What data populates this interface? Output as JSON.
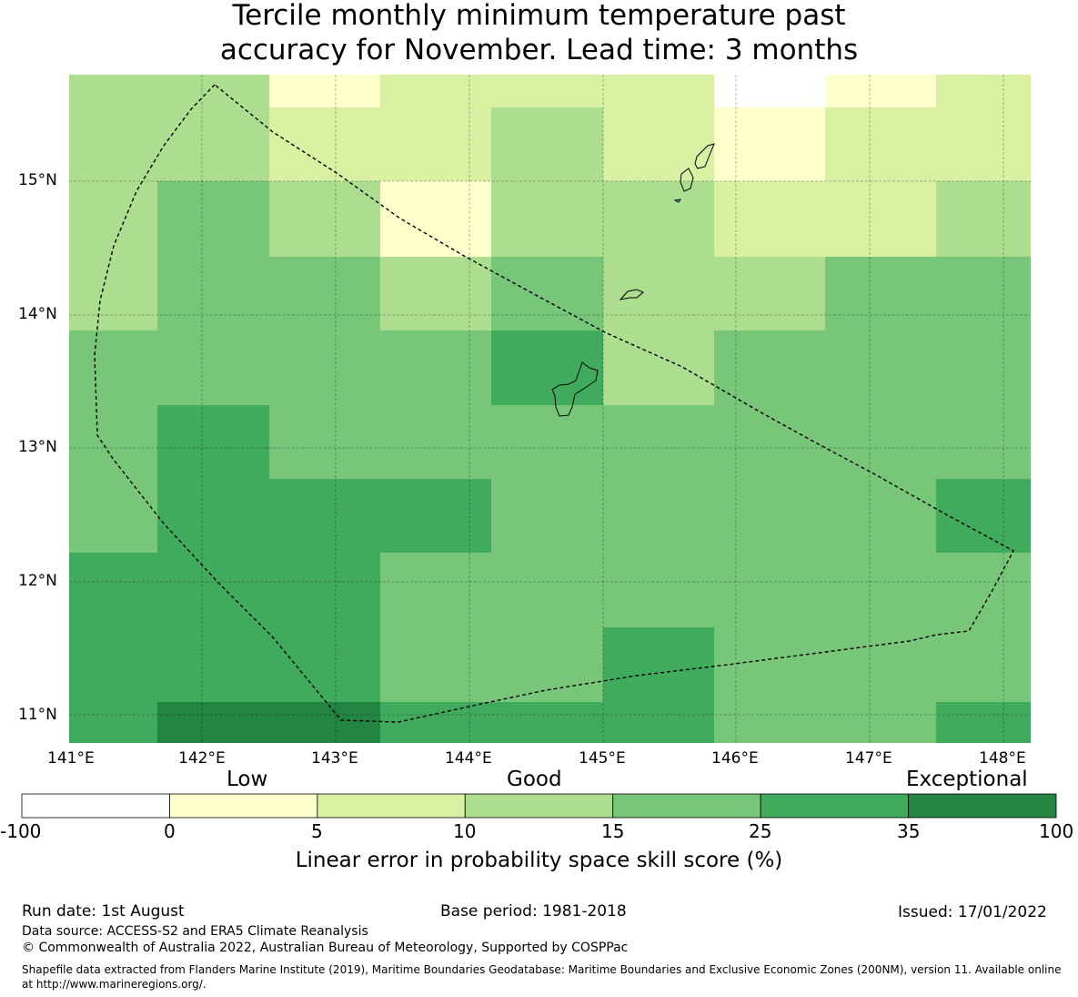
{
  "title_line1": "Tercile monthly minimum temperature past",
  "title_line2": "accuracy for November. Lead time: 3 months",
  "map": {
    "lon_labels": [
      "141°E",
      "142°E",
      "143°E",
      "144°E",
      "145°E",
      "146°E",
      "147°E",
      "148°E"
    ],
    "lat_labels": [
      "15°N",
      "14°N",
      "13°N",
      "12°N",
      "11°N"
    ],
    "grid_cells_note_categories": [
      "below 0",
      "0-5",
      "5-10",
      "10-15",
      "15-25",
      "25-35",
      "35-100"
    ],
    "grid": [
      [
        3,
        3,
        1,
        2,
        2,
        2,
        0,
        1,
        2
      ],
      [
        3,
        3,
        2,
        2,
        3,
        2,
        1,
        2,
        2
      ],
      [
        3,
        4,
        3,
        1,
        3,
        3,
        2,
        2,
        3
      ],
      [
        3,
        4,
        4,
        3,
        4,
        3,
        3,
        4,
        4
      ],
      [
        4,
        4,
        4,
        4,
        5,
        3,
        4,
        4,
        4
      ],
      [
        4,
        5,
        4,
        4,
        4,
        4,
        4,
        4,
        4
      ],
      [
        4,
        5,
        5,
        5,
        4,
        4,
        4,
        4,
        5
      ],
      [
        5,
        5,
        5,
        4,
        4,
        4,
        4,
        4,
        4
      ],
      [
        5,
        5,
        5,
        4,
        4,
        5,
        4,
        4,
        4
      ],
      [
        5,
        6,
        6,
        5,
        5,
        5,
        4,
        4,
        5
      ]
    ],
    "colors": {
      "below_0": "#ffffff",
      "0_5": "#ffffcc",
      "5_10": "#d9f0a3",
      "10_15": "#addd8e",
      "15_25": "#78c679",
      "25_35": "#41ab5d",
      "35_100": "#238443"
    }
  },
  "colorbar": {
    "words": [
      "Low",
      "Good",
      "Exceptional"
    ],
    "ticks": [
      "-100",
      "0",
      "5",
      "10",
      "15",
      "25",
      "35",
      "100"
    ],
    "colors": [
      "#ffffff",
      "#ffffcc",
      "#d9f0a3",
      "#addd8e",
      "#78c679",
      "#41ab5d",
      "#238443"
    ],
    "label": "Linear error in probability space skill score (%)"
  },
  "footer": {
    "run_date": "Run date: 1st August",
    "base_period": "Base period: 1981-2018",
    "issued": "Issued: 17/01/2022",
    "data_source": "Data source: ACCESS-S2 and ERA5 Climate Reanalysis",
    "copyright": "© Commonwealth of Australia 2022, Australian Bureau of Meteorology, Supported by COSPPac",
    "shapefile_line1": "Shapefile data extracted from Flanders Marine Institute (2019), Maritime Boundaries Geodatabase: Maritime Boundaries and Exclusive Economic Zones (200NM), version 11. Available online",
    "shapefile_line2": "at http://www.marineregions.org/."
  }
}
